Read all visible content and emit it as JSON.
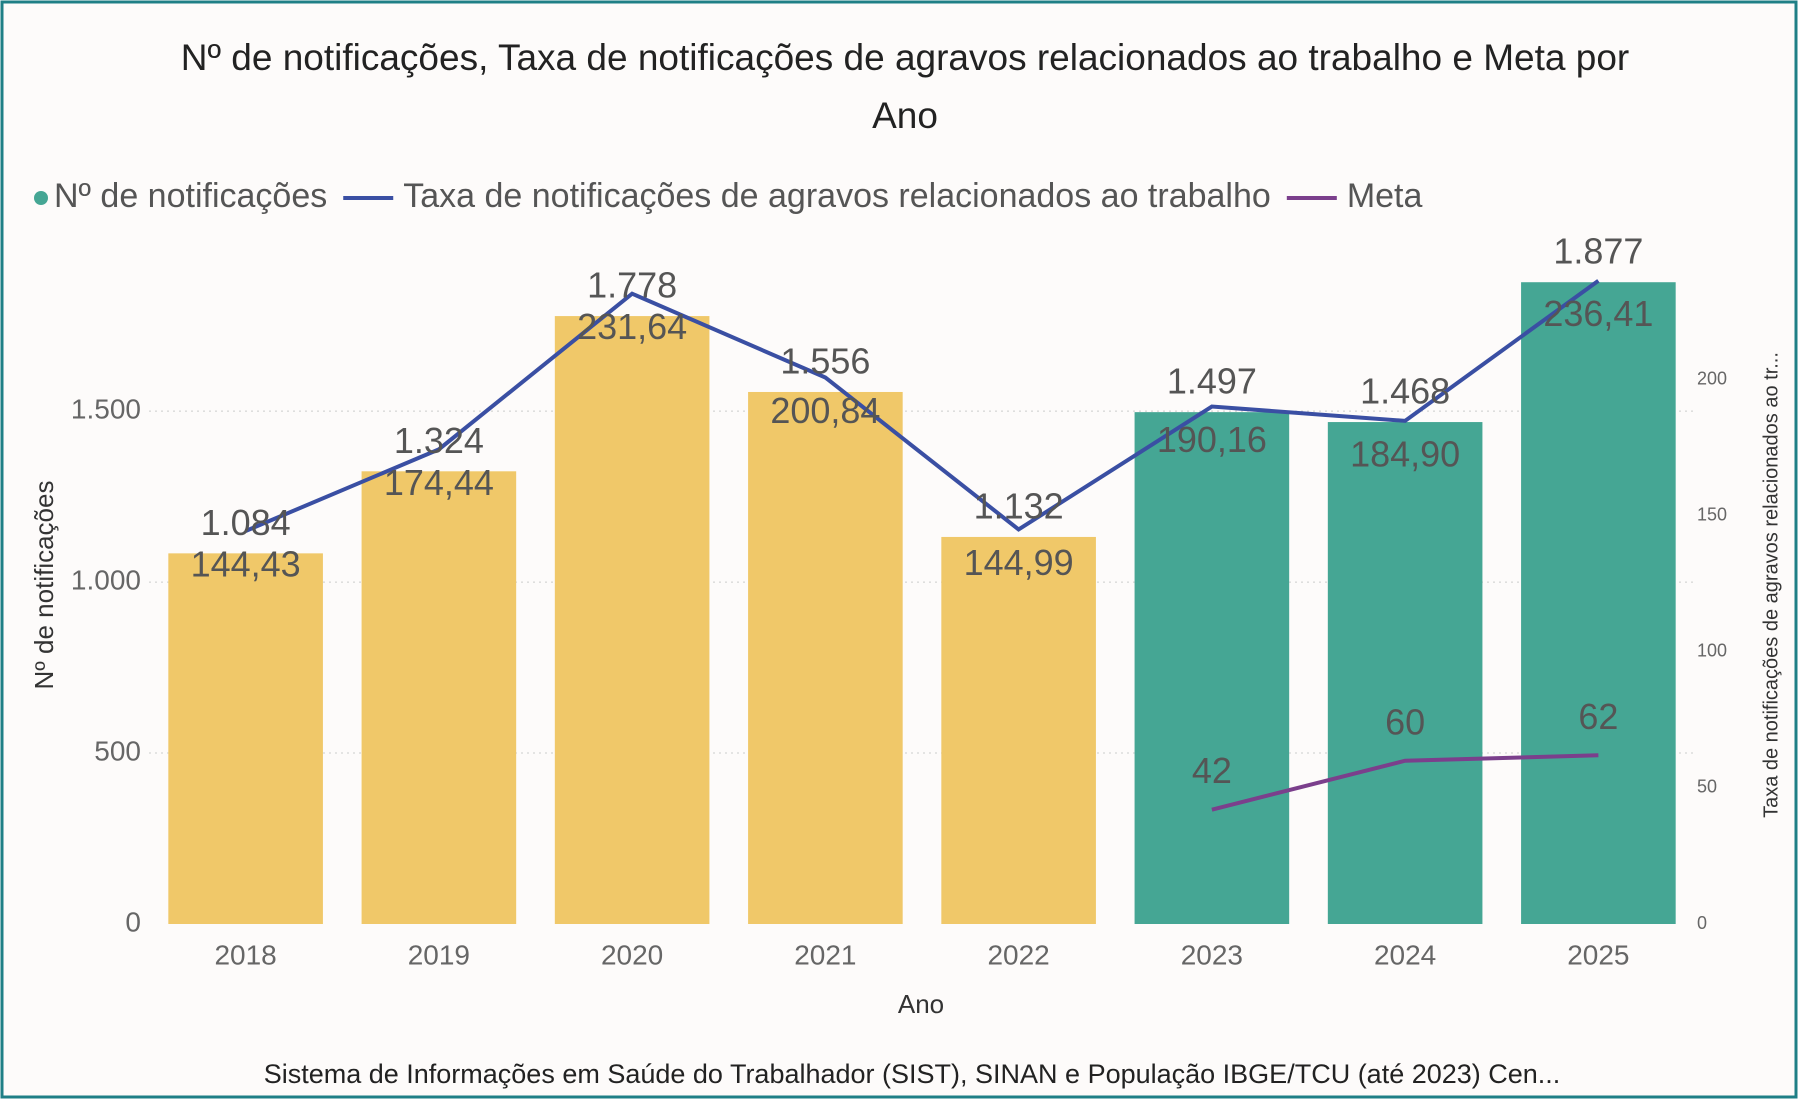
{
  "chart_data": {
    "type": "bar_line",
    "title": [
      "Nº de notificações, Taxa de notificações de agravos relacionados ao trabalho e Meta por",
      "Ano"
    ],
    "categories": [
      "2018",
      "2019",
      "2020",
      "2021",
      "2022",
      "2023",
      "2024",
      "2025"
    ],
    "series": [
      {
        "name": "Nº de notificações",
        "type": "bar",
        "color": "#45a694",
        "colors": [
          "#f0c869",
          "#f0c869",
          "#f0c869",
          "#f0c869",
          "#f0c869",
          "#45a694",
          "#45a694",
          "#45a694"
        ],
        "values": [
          1084,
          1324,
          1778,
          1556,
          1132,
          1497,
          1468,
          1877
        ],
        "value_labels": [
          "1.084",
          "1.324",
          "1.778",
          "1.556",
          "1.132",
          "1.497",
          "1.468",
          "1.877"
        ]
      },
      {
        "name": "Taxa de notificações de agravos relacionados ao trabalho",
        "type": "line",
        "axis": "y2",
        "color": "#3a4fa3",
        "values": [
          144.43,
          174.44,
          231.64,
          200.84,
          144.99,
          190.16,
          184.9,
          236.41
        ],
        "value_labels": [
          "144,43",
          "174,44",
          "231,64",
          "200,84",
          "144,99",
          "190,16",
          "184,90",
          "236,41"
        ]
      },
      {
        "name": "Meta",
        "type": "line",
        "axis": "y2",
        "color": "#7b3f8c",
        "values": [
          null,
          null,
          null,
          null,
          null,
          42,
          60,
          62
        ]
      }
    ],
    "xlabel": "Ano",
    "ylabel": "Nº de notificações",
    "y2label": "Taxa de notificações de agravos relacionados ao tr...",
    "ylim": [
      0,
      1980
    ],
    "yticks": [
      0,
      500,
      {
        "value": 1000,
        "label": "1.000"
      },
      {
        "value": 1500,
        "label": "1.500"
      }
    ],
    "y2lim": [
      0,
      248.8
    ],
    "y2ticks": [
      0,
      50,
      100,
      150,
      200
    ],
    "grid": true,
    "source": "Sistema de Informações em Saúde do Trabalhador (SIST), SINAN e População IBGE/TCU (até 2023) Cen..."
  }
}
